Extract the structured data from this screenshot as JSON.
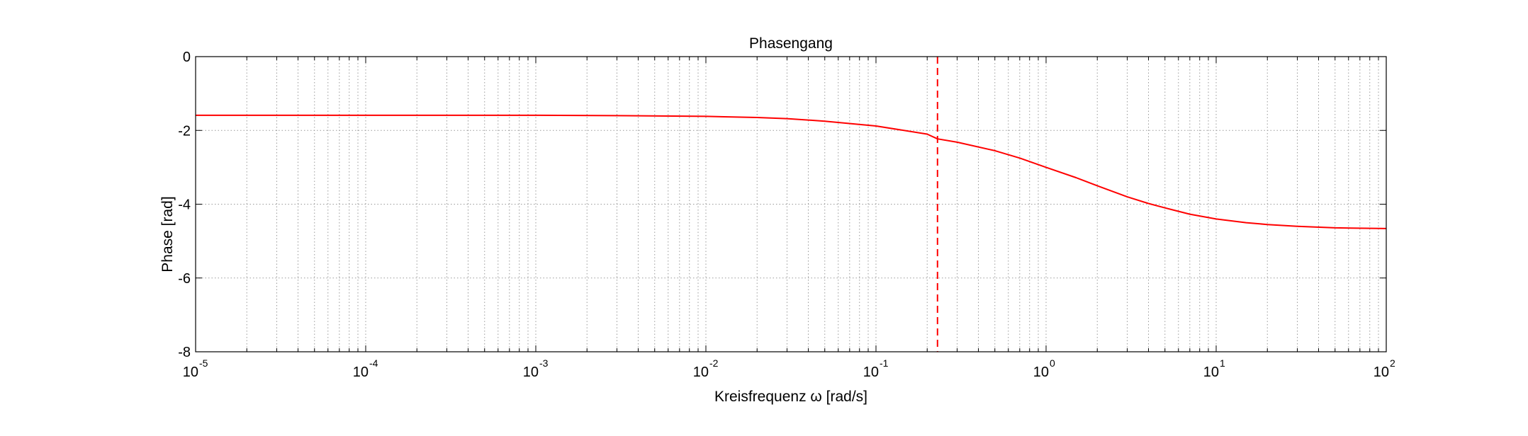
{
  "chart_data": {
    "type": "line",
    "title": "Phasengang",
    "xlabel": "Kreisfrequenz ω [rad/s]",
    "ylabel": "Phase [rad]",
    "x_scale": "log",
    "xlim": [
      1e-05,
      100
    ],
    "ylim": [
      -8,
      0
    ],
    "grid": true,
    "x_ticks": [
      {
        "base": "10",
        "exp": "-5"
      },
      {
        "base": "10",
        "exp": "-4"
      },
      {
        "base": "10",
        "exp": "-3"
      },
      {
        "base": "10",
        "exp": "-2"
      },
      {
        "base": "10",
        "exp": "-1"
      },
      {
        "base": "10",
        "exp": "0"
      },
      {
        "base": "10",
        "exp": "1"
      },
      {
        "base": "10",
        "exp": "2"
      }
    ],
    "y_ticks": [
      "-8",
      "-6",
      "-4",
      "-2",
      "0"
    ],
    "series": [
      {
        "color": "#ff0000",
        "style": "solid",
        "x": [
          1e-05,
          0.0001,
          0.001,
          0.003,
          0.01,
          0.02,
          0.03,
          0.05,
          0.1,
          0.2,
          0.23,
          0.3,
          0.5,
          0.7,
          1,
          1.5,
          2,
          3,
          4,
          5,
          7,
          10,
          15,
          20,
          30,
          50,
          100
        ],
        "y": [
          -1.59,
          -1.59,
          -1.59,
          -1.6,
          -1.62,
          -1.65,
          -1.68,
          -1.75,
          -1.88,
          -2.1,
          -2.23,
          -2.32,
          -2.55,
          -2.75,
          -3.0,
          -3.28,
          -3.5,
          -3.8,
          -3.98,
          -4.1,
          -4.27,
          -4.4,
          -4.5,
          -4.55,
          -4.6,
          -4.64,
          -4.66
        ]
      },
      {
        "color": "#ff0000",
        "style": "dashed",
        "x": [
          0.23,
          0.23
        ],
        "y": [
          0,
          -8
        ]
      }
    ]
  }
}
